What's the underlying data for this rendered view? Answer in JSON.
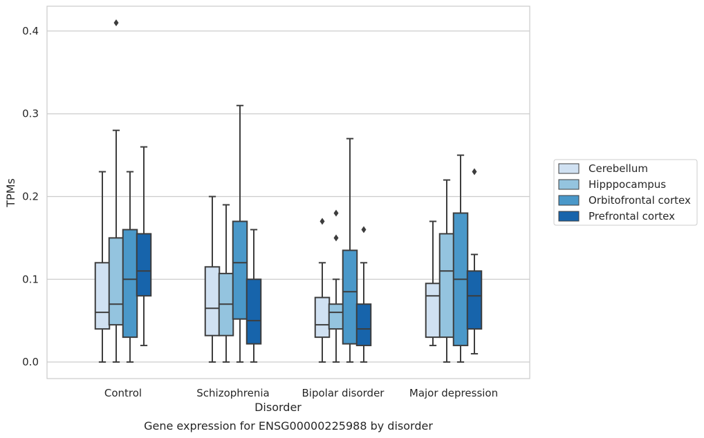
{
  "chart_data": {
    "type": "box",
    "title": "",
    "caption": "Gene expression for ENSG00000225988 by disorder",
    "xlabel": "Disorder",
    "ylabel": "TPMs",
    "ylim": [
      -0.02,
      0.43
    ],
    "yticks": [
      0.0,
      0.1,
      0.2,
      0.3,
      0.4
    ],
    "ytick_labels": [
      "0.0",
      "0.1",
      "0.2",
      "0.3",
      "0.4"
    ],
    "grid": "horizontal",
    "legend_position": "right",
    "categories": [
      "Control",
      "Schizophrenia",
      "Bipolar disorder",
      "Major depression"
    ],
    "series": [
      {
        "name": "Cerebellum",
        "color": "#d0e1f2",
        "boxes": [
          {
            "whisker_low": 0.0,
            "q1": 0.04,
            "median": 0.06,
            "q3": 0.12,
            "whisker_high": 0.23,
            "outliers": []
          },
          {
            "whisker_low": 0.0,
            "q1": 0.032,
            "median": 0.065,
            "q3": 0.115,
            "whisker_high": 0.2,
            "outliers": []
          },
          {
            "whisker_low": 0.0,
            "q1": 0.03,
            "median": 0.045,
            "q3": 0.078,
            "whisker_high": 0.12,
            "outliers": [
              0.17
            ]
          },
          {
            "whisker_low": 0.02,
            "q1": 0.03,
            "median": 0.08,
            "q3": 0.095,
            "whisker_high": 0.17,
            "outliers": []
          }
        ]
      },
      {
        "name": "Hipppocampus",
        "color": "#94c4df",
        "boxes": [
          {
            "whisker_low": 0.0,
            "q1": 0.045,
            "median": 0.07,
            "q3": 0.15,
            "whisker_high": 0.28,
            "outliers": [
              0.41
            ]
          },
          {
            "whisker_low": 0.0,
            "q1": 0.032,
            "median": 0.07,
            "q3": 0.107,
            "whisker_high": 0.19,
            "outliers": []
          },
          {
            "whisker_low": 0.0,
            "q1": 0.04,
            "median": 0.06,
            "q3": 0.07,
            "whisker_high": 0.1,
            "outliers": [
              0.15,
              0.18
            ]
          },
          {
            "whisker_low": 0.0,
            "q1": 0.03,
            "median": 0.11,
            "q3": 0.155,
            "whisker_high": 0.22,
            "outliers": []
          }
        ]
      },
      {
        "name": "Orbitofrontal cortex",
        "color": "#4a98c9",
        "boxes": [
          {
            "whisker_low": 0.0,
            "q1": 0.03,
            "median": 0.1,
            "q3": 0.16,
            "whisker_high": 0.23,
            "outliers": []
          },
          {
            "whisker_low": 0.0,
            "q1": 0.052,
            "median": 0.12,
            "q3": 0.17,
            "whisker_high": 0.31,
            "outliers": []
          },
          {
            "whisker_low": 0.0,
            "q1": 0.022,
            "median": 0.085,
            "q3": 0.135,
            "whisker_high": 0.27,
            "outliers": []
          },
          {
            "whisker_low": 0.0,
            "q1": 0.02,
            "median": 0.1,
            "q3": 0.18,
            "whisker_high": 0.25,
            "outliers": []
          }
        ]
      },
      {
        "name": "Prefrontal cortex",
        "color": "#1764ab",
        "boxes": [
          {
            "whisker_low": 0.02,
            "q1": 0.08,
            "median": 0.11,
            "q3": 0.155,
            "whisker_high": 0.26,
            "outliers": []
          },
          {
            "whisker_low": 0.0,
            "q1": 0.022,
            "median": 0.05,
            "q3": 0.1,
            "whisker_high": 0.16,
            "outliers": []
          },
          {
            "whisker_low": 0.0,
            "q1": 0.02,
            "median": 0.04,
            "q3": 0.07,
            "whisker_high": 0.12,
            "outliers": [
              0.16
            ]
          },
          {
            "whisker_low": 0.01,
            "q1": 0.04,
            "median": 0.08,
            "q3": 0.11,
            "whisker_high": 0.13,
            "outliers": [
              0.23
            ]
          }
        ]
      }
    ]
  }
}
